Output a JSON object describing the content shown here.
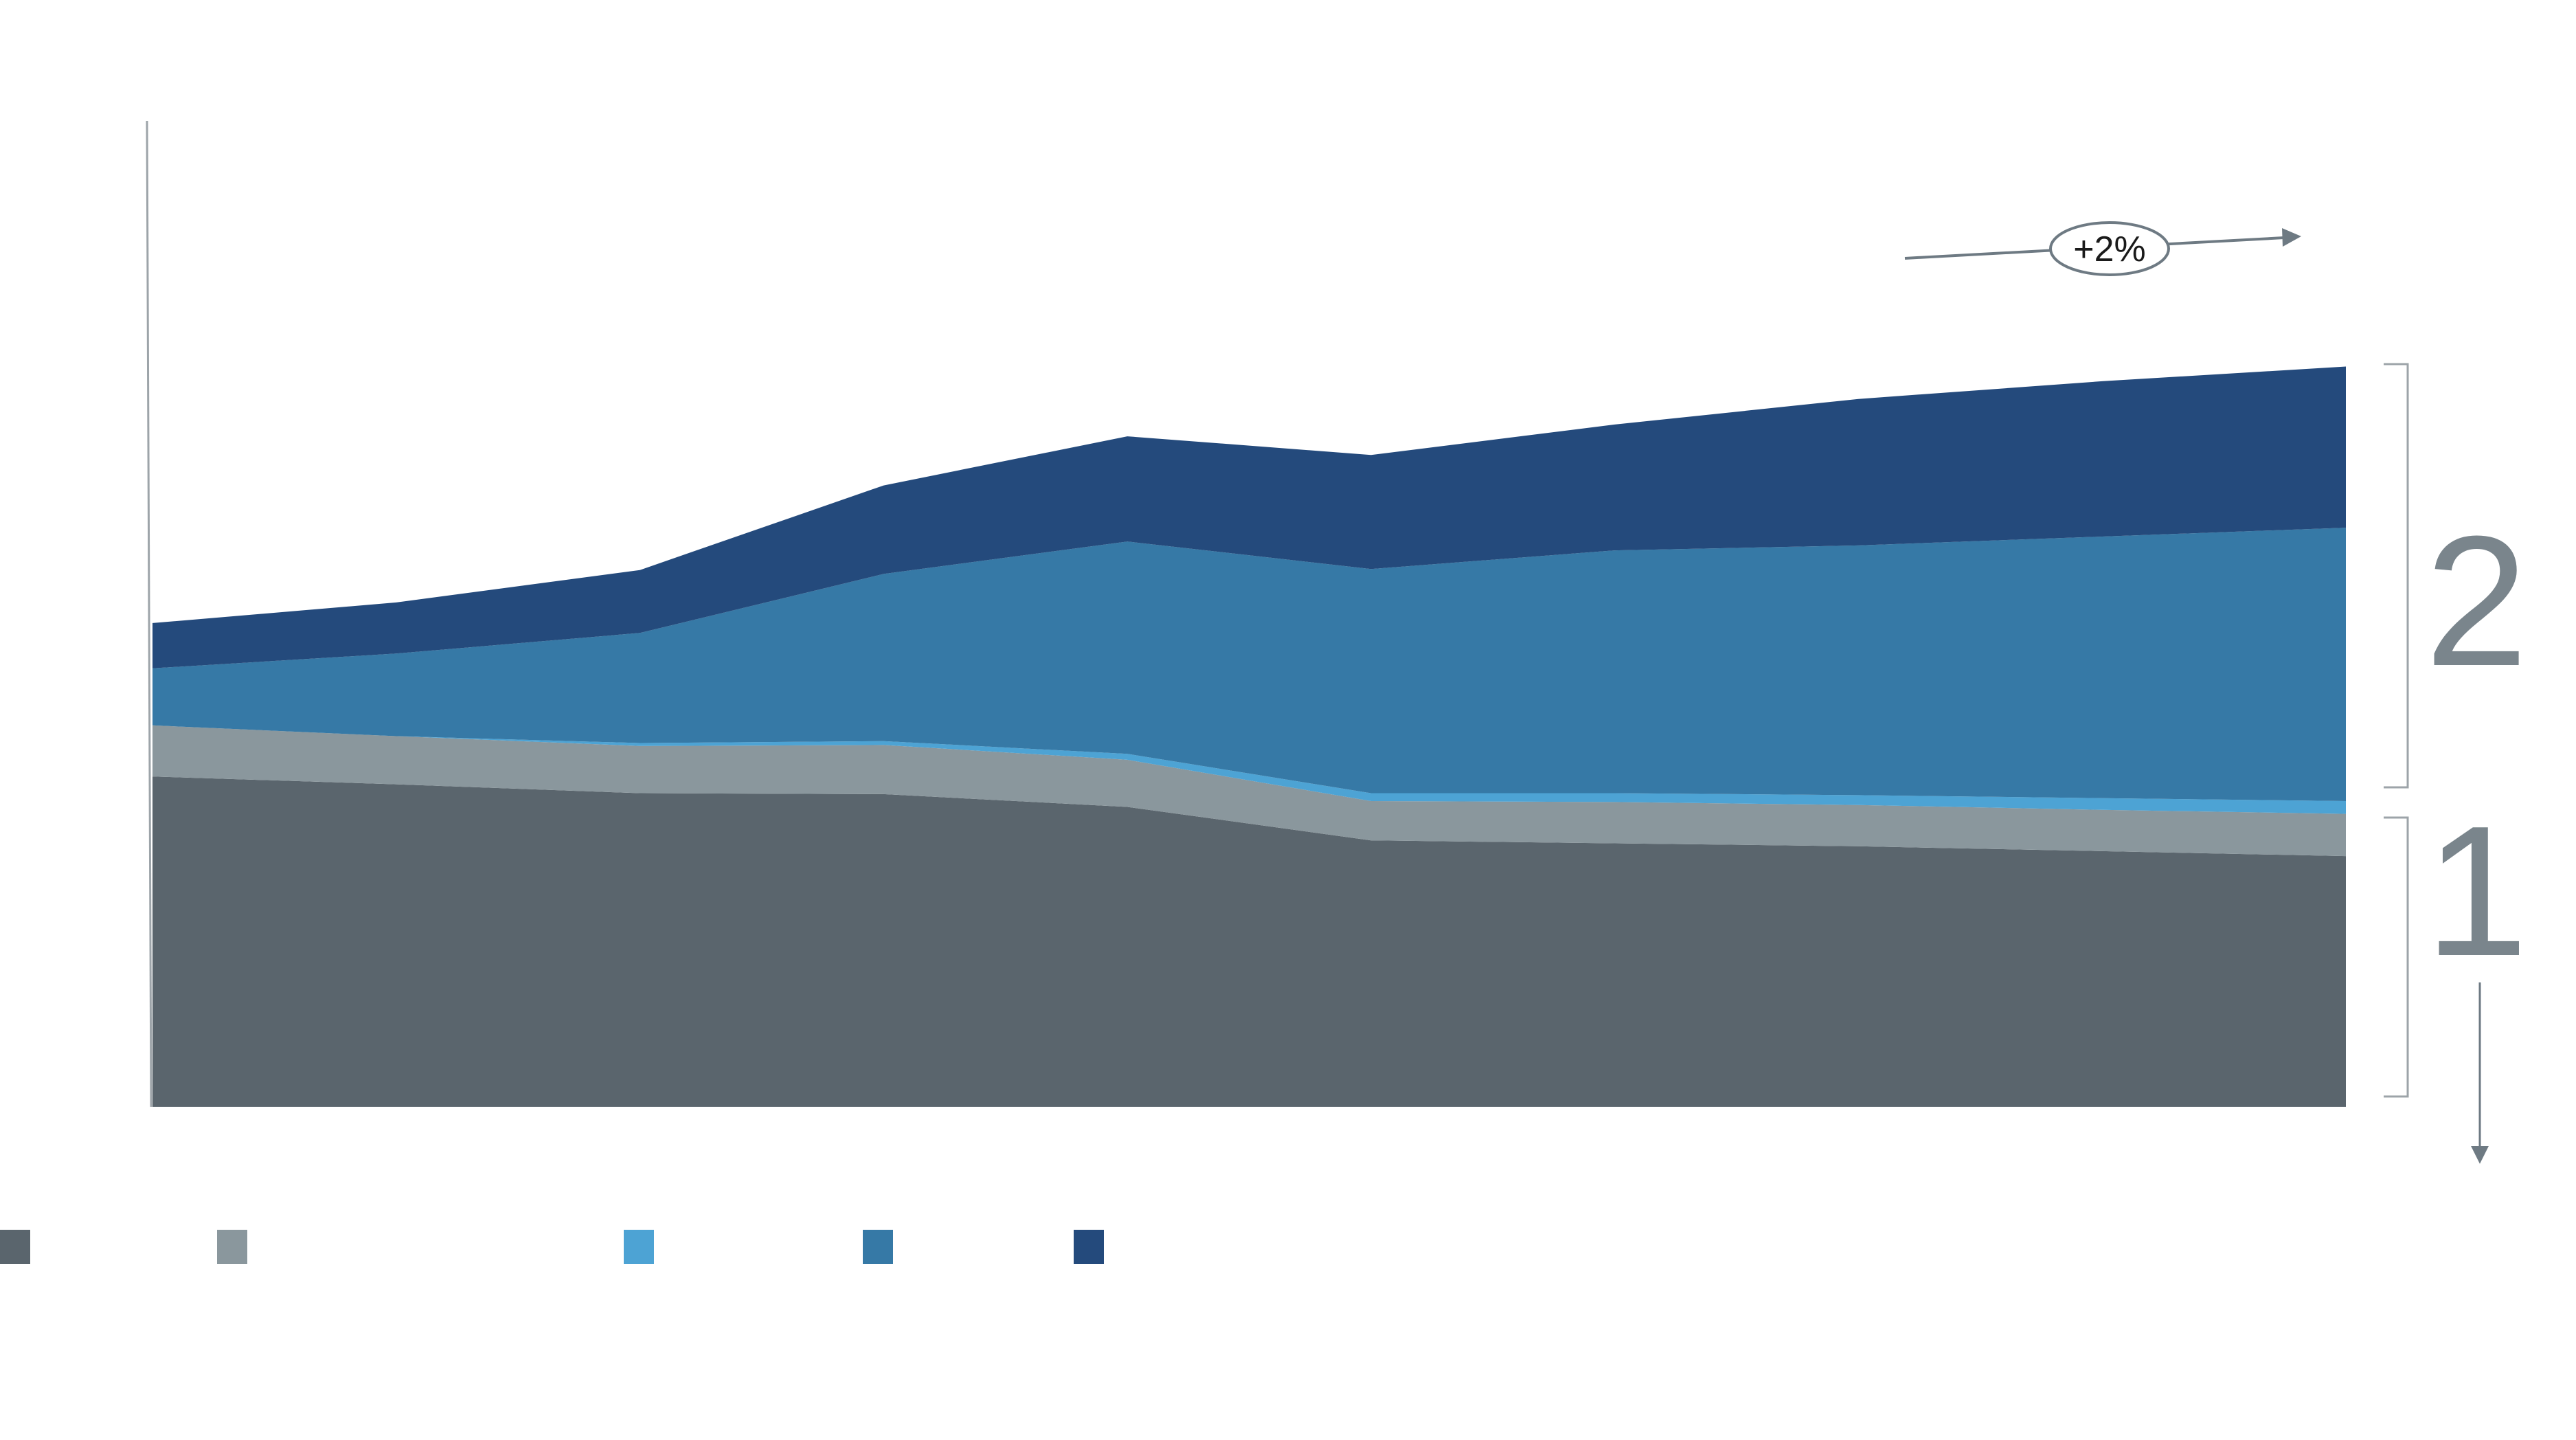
{
  "chart_data": {
    "type": "area",
    "stacked": true,
    "x": [
      0,
      1,
      2,
      3,
      4,
      5,
      6,
      7,
      8,
      9
    ],
    "ylim": [
      0,
      100
    ],
    "grid": false,
    "series": [
      {
        "color": "#5A656D",
        "values": [
          33.6,
          32.8,
          31.9,
          31.8,
          30.5,
          27.1,
          26.8,
          26.5,
          26.0,
          25.5
        ]
      },
      {
        "color": "#8A979D",
        "values": [
          5.2,
          4.9,
          4.8,
          5.0,
          4.8,
          4.0,
          4.2,
          4.2,
          4.2,
          4.3
        ]
      },
      {
        "color": "#4DA3D4",
        "values": [
          0.0,
          0.0,
          0.3,
          0.4,
          0.6,
          0.8,
          0.9,
          1.0,
          1.2,
          1.3
        ]
      },
      {
        "color": "#3679A6",
        "values": [
          5.8,
          8.4,
          11.2,
          17.0,
          21.6,
          22.8,
          24.7,
          25.4,
          26.6,
          27.8
        ]
      },
      {
        "color": "#244A7C",
        "values": [
          4.6,
          5.2,
          6.4,
          9.0,
          10.7,
          11.6,
          12.8,
          14.9,
          15.8,
          16.4
        ]
      }
    ],
    "annotations": {
      "growth_label": "+2%",
      "segment_labels": [
        "1",
        "2"
      ]
    },
    "legend_position": "bottom"
  },
  "colors": {
    "axis": "#9DA4A9",
    "annotation": "#7A858C",
    "arrow": "#6E7A83"
  }
}
